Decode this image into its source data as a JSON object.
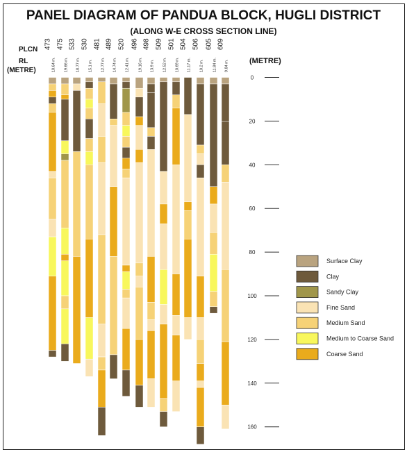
{
  "header": {
    "title": "PANEL DIAGRAM OF PANDUA BLOCK, HUGLI DISTRICT",
    "subtitle": "(ALONG W-E CROSS SECTION LINE)"
  },
  "labels": {
    "plcn": "PLCN",
    "rl": "RL",
    "rl_unit": "(METRE)",
    "depth_unit": "(METRE)"
  },
  "depth_scale": {
    "ticks": [
      0,
      20,
      40,
      60,
      80,
      100,
      120,
      140,
      160
    ]
  },
  "materials": [
    {
      "key": "surface_clay",
      "name": "Surface Clay",
      "color": "#b9a37f"
    },
    {
      "key": "clay",
      "name": "Clay",
      "color": "#6e5a3c"
    },
    {
      "key": "sandy_clay",
      "name": "Sandy Clay",
      "color": "#a0964a"
    },
    {
      "key": "fine_sand",
      "name": "Fine Sand",
      "color": "#fae3b4"
    },
    {
      "key": "medium_sand",
      "name": "Medium Sand",
      "color": "#f6d277"
    },
    {
      "key": "medium_coarse_sand",
      "name": "Medium to Coarse Sand",
      "color": "#f8f75c"
    },
    {
      "key": "coarse_sand",
      "name": "Coarse Sand",
      "color": "#eaab1c"
    }
  ],
  "wells": [
    {
      "plcn": "473",
      "rl": "18.64 m.",
      "layers": [
        [
          0,
          3,
          "surface_clay"
        ],
        [
          3,
          6,
          "medium_sand"
        ],
        [
          6,
          9,
          "coarse_sand"
        ],
        [
          9,
          12,
          "clay"
        ],
        [
          12,
          16,
          "medium_sand"
        ],
        [
          16,
          43,
          "coarse_sand"
        ],
        [
          43,
          46,
          "fine_sand"
        ],
        [
          46,
          65,
          "medium_sand"
        ],
        [
          65,
          73,
          "fine_sand"
        ],
        [
          73,
          91,
          "medium_coarse_sand"
        ],
        [
          91,
          125,
          "coarse_sand"
        ],
        [
          125,
          128,
          "clay"
        ]
      ]
    },
    {
      "plcn": "475",
      "rl": "19.66 m.",
      "layers": [
        [
          0,
          3,
          "surface_clay"
        ],
        [
          3,
          8,
          "medium_sand"
        ],
        [
          8,
          10,
          "coarse_sand"
        ],
        [
          10,
          29,
          "clay"
        ],
        [
          29,
          35,
          "medium_coarse_sand"
        ],
        [
          35,
          38,
          "sandy_clay"
        ],
        [
          38,
          69,
          "medium_sand"
        ],
        [
          69,
          81,
          "medium_coarse_sand"
        ],
        [
          81,
          84,
          "coarse_sand"
        ],
        [
          84,
          100,
          "medium_coarse_sand"
        ],
        [
          100,
          106,
          "medium_sand"
        ],
        [
          106,
          122,
          "medium_coarse_sand"
        ],
        [
          122,
          130,
          "clay"
        ]
      ]
    },
    {
      "plcn": "533",
      "rl": "18.77 m.",
      "layers": [
        [
          0,
          3,
          "surface_clay"
        ],
        [
          3,
          6,
          "fine_sand"
        ],
        [
          6,
          34,
          "clay"
        ],
        [
          34,
          82,
          "medium_sand"
        ],
        [
          82,
          131,
          "coarse_sand"
        ]
      ]
    },
    {
      "plcn": "530",
      "rl": "15.1 m.",
      "layers": [
        [
          0,
          2,
          "surface_clay"
        ],
        [
          2,
          5,
          "clay"
        ],
        [
          5,
          10,
          "medium_sand"
        ],
        [
          10,
          14,
          "medium_coarse_sand"
        ],
        [
          14,
          19,
          "medium_sand"
        ],
        [
          19,
          28,
          "clay"
        ],
        [
          28,
          34,
          "medium_sand"
        ],
        [
          34,
          40,
          "medium_coarse_sand"
        ],
        [
          40,
          74,
          "medium_sand"
        ],
        [
          74,
          110,
          "coarse_sand"
        ],
        [
          110,
          129,
          "medium_coarse_sand"
        ],
        [
          129,
          137,
          "fine_sand"
        ]
      ]
    },
    {
      "plcn": "481",
      "rl": "12.77 m.",
      "layers": [
        [
          0,
          2,
          "surface_clay"
        ],
        [
          2,
          12,
          "medium_sand"
        ],
        [
          12,
          27,
          "fine_sand"
        ],
        [
          27,
          39,
          "medium_sand"
        ],
        [
          39,
          72,
          "fine_sand"
        ],
        [
          72,
          113,
          "medium_sand"
        ],
        [
          113,
          128,
          "fine_sand"
        ],
        [
          128,
          134,
          "medium_sand"
        ],
        [
          134,
          151,
          "coarse_sand"
        ],
        [
          151,
          164,
          "clay"
        ]
      ]
    },
    {
      "plcn": "489",
      "rl": "14.74 m.",
      "layers": [
        [
          0,
          3,
          "surface_clay"
        ],
        [
          3,
          19,
          "clay"
        ],
        [
          19,
          22,
          "medium_sand"
        ],
        [
          22,
          50,
          "fine_sand"
        ],
        [
          50,
          82,
          "coarse_sand"
        ],
        [
          82,
          127,
          "medium_sand"
        ],
        [
          127,
          138,
          "clay"
        ]
      ]
    },
    {
      "plcn": "520",
      "rl": "12.41 m.",
      "layers": [
        [
          0,
          2,
          "surface_clay"
        ],
        [
          2,
          5,
          "clay"
        ],
        [
          5,
          16,
          "sandy_clay"
        ],
        [
          16,
          22,
          "medium_sand"
        ],
        [
          22,
          27,
          "medium_coarse_sand"
        ],
        [
          27,
          32,
          "medium_sand"
        ],
        [
          32,
          37,
          "clay"
        ],
        [
          37,
          42,
          "coarse_sand"
        ],
        [
          42,
          46,
          "medium_sand"
        ],
        [
          46,
          86,
          "fine_sand"
        ],
        [
          86,
          89,
          "coarse_sand"
        ],
        [
          89,
          97,
          "medium_coarse_sand"
        ],
        [
          97,
          101,
          "medium_sand"
        ],
        [
          101,
          115,
          "fine_sand"
        ],
        [
          115,
          134,
          "coarse_sand"
        ],
        [
          134,
          146,
          "clay"
        ]
      ]
    },
    {
      "plcn": "496",
      "rl": "19.16 m.",
      "layers": [
        [
          0,
          5,
          "surface_clay"
        ],
        [
          5,
          9,
          "fine_sand"
        ],
        [
          9,
          18,
          "clay"
        ],
        [
          18,
          22,
          "coarse_sand"
        ],
        [
          22,
          33,
          "fine_sand"
        ],
        [
          33,
          39,
          "coarse_sand"
        ],
        [
          39,
          85,
          "fine_sand"
        ],
        [
          85,
          91,
          "medium_sand"
        ],
        [
          91,
          96,
          "fine_sand"
        ],
        [
          96,
          120,
          "medium_sand"
        ],
        [
          120,
          141,
          "coarse_sand"
        ],
        [
          141,
          151,
          "clay"
        ]
      ]
    },
    {
      "plcn": "498",
      "rl": "13.9 m.",
      "layers": [
        [
          0,
          3,
          "surface_clay"
        ],
        [
          3,
          7,
          "clay"
        ],
        [
          7,
          23,
          "clay"
        ],
        [
          23,
          27,
          "medium_sand"
        ],
        [
          27,
          33,
          "clay"
        ],
        [
          33,
          82,
          "fine_sand"
        ],
        [
          82,
          103,
          "coarse_sand"
        ],
        [
          103,
          111,
          "medium_sand"
        ],
        [
          111,
          116,
          "fine_sand"
        ],
        [
          116,
          138,
          "coarse_sand"
        ],
        [
          138,
          151,
          "fine_sand"
        ]
      ]
    },
    {
      "plcn": "509",
      "rl": "12.52 m.",
      "layers": [
        [
          0,
          2,
          "surface_clay"
        ],
        [
          2,
          43,
          "clay"
        ],
        [
          43,
          58,
          "fine_sand"
        ],
        [
          58,
          67,
          "coarse_sand"
        ],
        [
          67,
          88,
          "fine_sand"
        ],
        [
          88,
          104,
          "medium_coarse_sand"
        ],
        [
          104,
          113,
          "fine_sand"
        ],
        [
          113,
          147,
          "coarse_sand"
        ],
        [
          147,
          153,
          "medium_sand"
        ],
        [
          153,
          160,
          "clay"
        ]
      ]
    },
    {
      "plcn": "501",
      "rl": "10.69 m.",
      "layers": [
        [
          0,
          2,
          "surface_clay"
        ],
        [
          2,
          8,
          "clay"
        ],
        [
          8,
          14,
          "medium_sand"
        ],
        [
          14,
          40,
          "coarse_sand"
        ],
        [
          40,
          90,
          "fine_sand"
        ],
        [
          90,
          109,
          "coarse_sand"
        ],
        [
          109,
          118,
          "fine_sand"
        ],
        [
          118,
          139,
          "coarse_sand"
        ],
        [
          139,
          153,
          "fine_sand"
        ]
      ]
    },
    {
      "plcn": "504",
      "rl": "11.17 m.",
      "layers": [
        [
          0,
          17,
          "clay"
        ],
        [
          17,
          57,
          "fine_sand"
        ],
        [
          57,
          61,
          "coarse_sand"
        ],
        [
          61,
          74,
          "medium_sand"
        ],
        [
          74,
          110,
          "coarse_sand"
        ],
        [
          110,
          120,
          "fine_sand"
        ]
      ]
    },
    {
      "plcn": "506",
      "rl": "10.2 m.",
      "layers": [
        [
          0,
          3,
          "surface_clay"
        ],
        [
          3,
          31,
          "clay"
        ],
        [
          31,
          35,
          "medium_sand"
        ],
        [
          35,
          40,
          "fine_sand"
        ],
        [
          40,
          46,
          "clay"
        ],
        [
          46,
          91,
          "fine_sand"
        ],
        [
          91,
          110,
          "coarse_sand"
        ],
        [
          110,
          120,
          "fine_sand"
        ],
        [
          120,
          131,
          "medium_sand"
        ],
        [
          131,
          139,
          "coarse_sand"
        ],
        [
          139,
          142,
          "fine_sand"
        ],
        [
          142,
          160,
          "coarse_sand"
        ],
        [
          160,
          168,
          "clay"
        ]
      ]
    },
    {
      "plcn": "605",
      "rl": "11.84 m.",
      "layers": [
        [
          0,
          3,
          "surface_clay"
        ],
        [
          3,
          50,
          "clay"
        ],
        [
          50,
          58,
          "coarse_sand"
        ],
        [
          58,
          71,
          "fine_sand"
        ],
        [
          71,
          81,
          "medium_sand"
        ],
        [
          81,
          98,
          "medium_coarse_sand"
        ],
        [
          98,
          105,
          "medium_sand"
        ],
        [
          105,
          108,
          "clay"
        ]
      ]
    },
    {
      "plcn": "609",
      "rl": "9.84 m.",
      "layers": [
        [
          0,
          3,
          "surface_clay"
        ],
        [
          3,
          20,
          "clay"
        ],
        [
          20,
          40,
          "clay"
        ],
        [
          40,
          48,
          "medium_sand"
        ],
        [
          48,
          88,
          "fine_sand"
        ],
        [
          88,
          121,
          "medium_sand"
        ],
        [
          121,
          150,
          "coarse_sand"
        ],
        [
          150,
          161,
          "fine_sand"
        ]
      ]
    }
  ]
}
